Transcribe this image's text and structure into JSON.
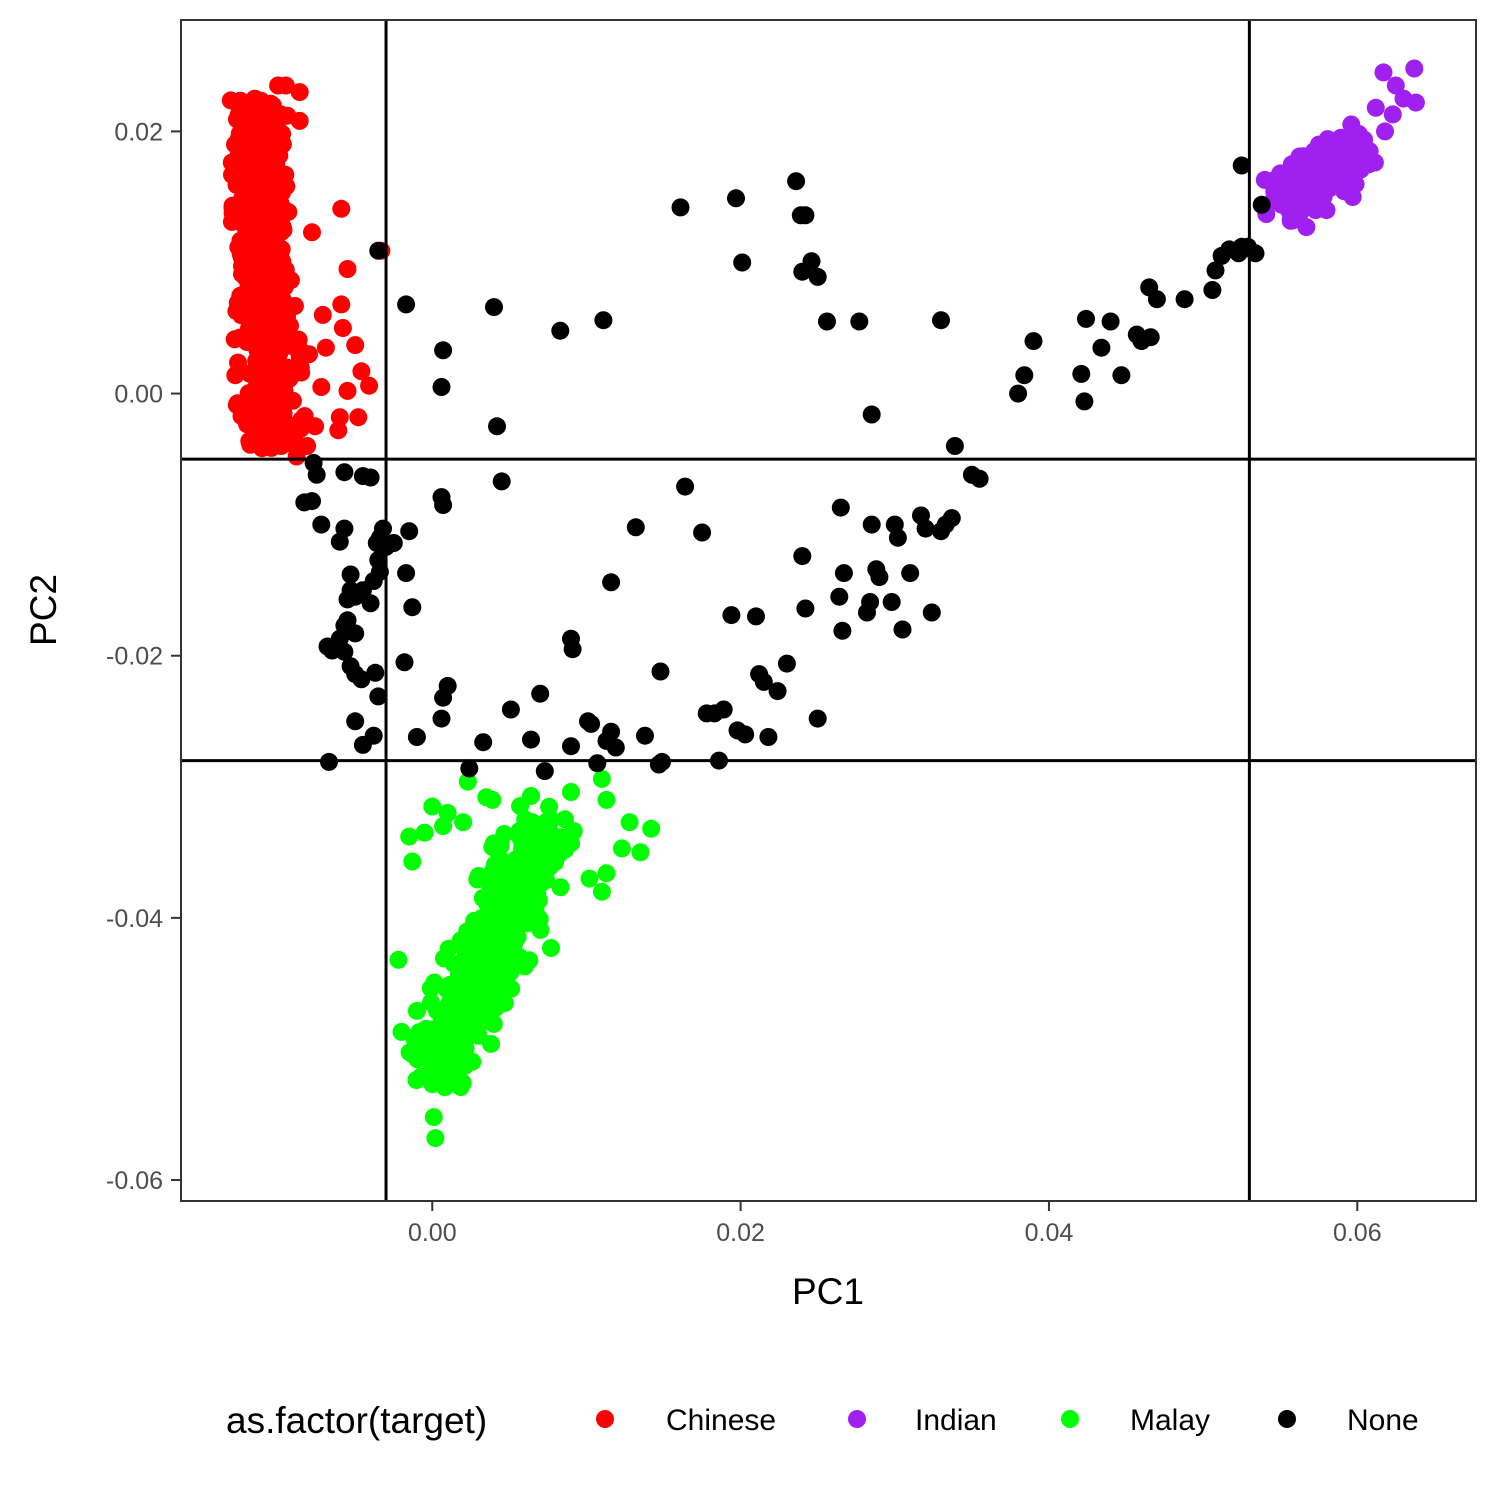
{
  "chart_data": {
    "type": "scatter",
    "xlabel": "PC1",
    "ylabel": "PC2",
    "xlim": [
      -0.0163,
      0.0677
    ],
    "ylim": [
      -0.0616,
      0.0285
    ],
    "xticks": [
      0.0,
      0.02,
      0.04,
      0.06
    ],
    "xtick_labels": [
      "0.00",
      "0.02",
      "0.04",
      "0.06"
    ],
    "yticks": [
      -0.06,
      -0.04,
      -0.02,
      0.0,
      0.02
    ],
    "ytick_labels": [
      "-0.06",
      "-0.04",
      "-0.02",
      "0.00",
      "0.02"
    ],
    "grid": false,
    "legend": {
      "title": "as.factor(target)",
      "position": "bottom"
    },
    "reference_lines": {
      "vertical": [
        -0.003,
        0.053
      ],
      "horizontal": [
        -0.005,
        -0.028
      ]
    },
    "series": [
      {
        "name": "Chinese",
        "color": "#ff0000",
        "generated": {
          "seed": 11,
          "count": 560,
          "mode": "vertical",
          "x_center": -0.0113,
          "y_min": -0.0043,
          "y_max": 0.0225,
          "spread_bottom": 0.0019,
          "spread_top": 0.0013,
          "shift_bottom": 0.0009,
          "shift_top": -0.0002
        },
        "points": [
          [
            -0.01,
            0.0235
          ],
          [
            -0.0095,
            0.0235
          ],
          [
            -0.0086,
            0.023
          ],
          [
            -0.0094,
            0.0212
          ],
          [
            -0.0086,
            0.0208
          ],
          [
            -0.0059,
            0.0141
          ],
          [
            -0.0078,
            0.0123
          ],
          [
            -0.0055,
            0.0095
          ],
          [
            -0.0033,
            0.0109
          ],
          [
            -0.0059,
            0.0068
          ],
          [
            -0.0071,
            0.006
          ],
          [
            -0.0058,
            0.005
          ],
          [
            -0.005,
            0.0037
          ],
          [
            -0.0069,
            0.0035
          ],
          [
            -0.0046,
            0.0017
          ],
          [
            -0.0055,
            0.0002
          ],
          [
            -0.0041,
            0.0006
          ],
          [
            -0.0048,
            -0.0018
          ],
          [
            -0.0072,
            0.0005
          ],
          [
            -0.006,
            -0.0018
          ],
          [
            -0.0085,
            -0.002
          ],
          [
            -0.0076,
            -0.0025
          ],
          [
            -0.0061,
            -0.0028
          ],
          [
            -0.008,
            0.003
          ],
          [
            -0.0089,
            -0.004
          ],
          [
            -0.0098,
            -0.004
          ],
          [
            -0.011,
            -0.004
          ],
          [
            -0.0088,
            -0.0048
          ],
          [
            -0.013,
            0.0131
          ],
          [
            -0.0128,
            0.019
          ]
        ]
      },
      {
        "name": "Indian",
        "color": "#a020f0",
        "generated": {
          "seed": 23,
          "count": 300,
          "mode": "diagonal",
          "x_from": 0.055,
          "y_from": 0.0148,
          "x_to": 0.0605,
          "y_to": 0.0188,
          "spread_along": 0.0014,
          "spread_across": 0.0008
        },
        "points": [
          [
            0.0617,
            0.0245
          ],
          [
            0.0637,
            0.0248
          ],
          [
            0.0625,
            0.0235
          ],
          [
            0.063,
            0.0225
          ],
          [
            0.0638,
            0.0222
          ],
          [
            0.0623,
            0.0213
          ],
          [
            0.0612,
            0.0218
          ],
          [
            0.0618,
            0.02
          ],
          [
            0.0608,
            0.0185
          ],
          [
            0.0601,
            0.0198
          ],
          [
            0.059,
            0.0172
          ],
          [
            0.054,
            0.0163
          ],
          [
            0.0541,
            0.0137
          ],
          [
            0.058,
            0.014
          ],
          [
            0.0567,
            0.0127
          ],
          [
            0.0557,
            0.0133
          ],
          [
            0.0597,
            0.015
          ],
          [
            0.0573,
            0.014
          ],
          [
            0.0563,
            0.015
          ],
          [
            0.0585,
            0.016
          ]
        ]
      },
      {
        "name": "Malay",
        "color": "#00ff00",
        "generated": {
          "seed": 37,
          "count": 380,
          "mode": "diagonal",
          "x_from": 0.0003,
          "y_from": -0.052,
          "x_to": 0.0072,
          "y_to": -0.033,
          "spread_along": 0.0038,
          "spread_across": 0.0011
        },
        "points": [
          [
            0.0002,
            -0.0568
          ],
          [
            0.0001,
            -0.0552
          ],
          [
            -0.0015,
            -0.0338
          ],
          [
            -0.0013,
            -0.0357
          ],
          [
            -0.002,
            -0.0487
          ],
          [
            -0.0022,
            -0.0432
          ],
          [
            -0.001,
            -0.0471
          ],
          [
            0.0023,
            -0.0296
          ],
          [
            0.0035,
            -0.0308
          ],
          [
            0.0039,
            -0.031
          ],
          [
            0.0064,
            -0.0307
          ],
          [
            0.009,
            -0.0304
          ],
          [
            0.011,
            -0.0294
          ],
          [
            0.0113,
            -0.031
          ],
          [
            0.0128,
            -0.0327
          ],
          [
            0.0142,
            -0.0332
          ],
          [
            0.0135,
            -0.035
          ],
          [
            0.0123,
            -0.0347
          ],
          [
            0.0113,
            -0.0366
          ],
          [
            0.0102,
            -0.037
          ],
          [
            0.011,
            -0.038
          ],
          [
            0.009,
            -0.0343
          ],
          [
            0.0079,
            -0.0357
          ],
          [
            0.006,
            -0.0365
          ],
          [
            0.0039,
            -0.0346
          ],
          [
            0.0007,
            -0.033
          ],
          [
            0.0,
            -0.0315
          ],
          [
            -0.0005,
            -0.0335
          ],
          [
            0.001,
            -0.032
          ],
          [
            0.002,
            -0.0327
          ],
          [
            0.0047,
            -0.0465
          ],
          [
            0.0043,
            -0.0442
          ],
          [
            0.0077,
            -0.0423
          ],
          [
            0.006,
            -0.0437
          ],
          [
            0.003,
            -0.049
          ],
          [
            0.002,
            -0.0475
          ],
          [
            0.001,
            -0.0505
          ],
          [
            0.0035,
            -0.046
          ],
          [
            0.0055,
            -0.04
          ],
          [
            0.0065,
            -0.038
          ]
        ]
      },
      {
        "name": "None",
        "color": "#000000",
        "points": [
          [
            -0.0035,
            0.0109
          ],
          [
            -0.0017,
            0.0068
          ],
          [
            0.0007,
            0.0033
          ],
          [
            0.0006,
            0.0005
          ],
          [
            0.004,
            0.0066
          ],
          [
            0.0042,
            -0.0025
          ],
          [
            0.0045,
            -0.0067
          ],
          [
            0.0083,
            0.0048
          ],
          [
            0.0111,
            0.0056
          ],
          [
            0.0161,
            0.0142
          ],
          [
            0.0197,
            0.0149
          ],
          [
            0.0201,
            0.01
          ],
          [
            0.0236,
            0.0162
          ],
          [
            0.0239,
            0.0136
          ],
          [
            0.0242,
            0.0136
          ],
          [
            0.0246,
            0.0101
          ],
          [
            0.024,
            0.0093
          ],
          [
            0.025,
            0.0089
          ],
          [
            0.0256,
            0.0055
          ],
          [
            0.0277,
            0.0055
          ],
          [
            0.0285,
            -0.0016
          ],
          [
            0.033,
            0.0056
          ],
          [
            0.0339,
            -0.004
          ],
          [
            0.0355,
            -0.0065
          ],
          [
            0.038,
            0.0
          ],
          [
            0.0384,
            0.0014
          ],
          [
            0.039,
            0.004
          ],
          [
            0.0421,
            0.0015
          ],
          [
            0.0423,
            -0.0006
          ],
          [
            0.0424,
            0.0057
          ],
          [
            0.0434,
            0.0035
          ],
          [
            0.044,
            0.0055
          ],
          [
            0.0447,
            0.0014
          ],
          [
            0.0457,
            0.0045
          ],
          [
            0.046,
            0.004
          ],
          [
            0.0465,
            0.0081
          ],
          [
            0.0466,
            0.0043
          ],
          [
            0.047,
            0.0072
          ],
          [
            0.0488,
            0.0072
          ],
          [
            0.0506,
            0.0079
          ],
          [
            0.0508,
            0.0094
          ],
          [
            0.0512,
            0.0105
          ],
          [
            0.0517,
            0.011
          ],
          [
            0.0523,
            0.0107
          ],
          [
            0.0525,
            0.0112
          ],
          [
            0.0529,
            0.0112
          ],
          [
            0.0534,
            0.0107
          ],
          [
            0.0538,
            0.0144
          ],
          [
            0.0525,
            0.0174
          ],
          [
            -0.0077,
            -0.0053
          ],
          [
            -0.0075,
            -0.0062
          ],
          [
            -0.0083,
            -0.0083
          ],
          [
            -0.0078,
            -0.0082
          ],
          [
            -0.0072,
            -0.01
          ],
          [
            -0.0057,
            -0.006
          ],
          [
            -0.0045,
            -0.0063
          ],
          [
            -0.004,
            -0.0064
          ],
          [
            -0.0057,
            -0.0103
          ],
          [
            -0.006,
            -0.0113
          ],
          [
            -0.0032,
            -0.0103
          ],
          [
            -0.0034,
            -0.011
          ],
          [
            -0.0036,
            -0.0114
          ],
          [
            -0.003,
            -0.0117
          ],
          [
            -0.0035,
            -0.0127
          ],
          [
            -0.0025,
            -0.0114
          ],
          [
            -0.0015,
            -0.0105
          ],
          [
            -0.0034,
            -0.0136
          ],
          [
            -0.0038,
            -0.0143
          ],
          [
            -0.0017,
            -0.0137
          ],
          [
            -0.0053,
            -0.0138
          ],
          [
            -0.0053,
            -0.015
          ],
          [
            -0.0055,
            -0.0157
          ],
          [
            -0.005,
            -0.0155
          ],
          [
            -0.0045,
            -0.015
          ],
          [
            -0.004,
            -0.016
          ],
          [
            -0.0013,
            -0.0163
          ],
          [
            -0.0055,
            -0.0173
          ],
          [
            -0.0057,
            -0.0177
          ],
          [
            -0.005,
            -0.0183
          ],
          [
            -0.006,
            -0.0187
          ],
          [
            -0.0063,
            -0.0193
          ],
          [
            -0.0057,
            -0.0197
          ],
          [
            -0.0065,
            -0.0196
          ],
          [
            -0.0068,
            -0.0193
          ],
          [
            -0.0053,
            -0.0208
          ],
          [
            -0.005,
            -0.0214
          ],
          [
            -0.0046,
            -0.0218
          ],
          [
            -0.0037,
            -0.0213
          ],
          [
            -0.0035,
            -0.0231
          ],
          [
            -0.005,
            -0.025
          ],
          [
            -0.0045,
            -0.0268
          ],
          [
            -0.0038,
            -0.0261
          ],
          [
            -0.0067,
            -0.0281
          ],
          [
            -0.0018,
            -0.0205
          ],
          [
            0.0006,
            -0.0079
          ],
          [
            0.0007,
            -0.0085
          ],
          [
            0.001,
            -0.0223
          ],
          [
            0.0007,
            -0.0232
          ],
          [
            0.0006,
            -0.0248
          ],
          [
            -0.001,
            -0.0262
          ],
          [
            0.0024,
            -0.0286
          ],
          [
            0.0033,
            -0.0266
          ],
          [
            0.0051,
            -0.0241
          ],
          [
            0.007,
            -0.0229
          ],
          [
            0.0064,
            -0.0264
          ],
          [
            0.0073,
            -0.0288
          ],
          [
            0.009,
            -0.0269
          ],
          [
            0.009,
            -0.0187
          ],
          [
            0.0091,
            -0.0195
          ],
          [
            0.0101,
            -0.025
          ],
          [
            0.0103,
            -0.0252
          ],
          [
            0.0107,
            -0.0282
          ],
          [
            0.0113,
            -0.0265
          ],
          [
            0.0116,
            -0.0258
          ],
          [
            0.0119,
            -0.027
          ],
          [
            0.0116,
            -0.0144
          ],
          [
            0.0132,
            -0.0102
          ],
          [
            0.0138,
            -0.0261
          ],
          [
            0.0147,
            -0.0283
          ],
          [
            0.0149,
            -0.0281
          ],
          [
            0.0148,
            -0.0212
          ],
          [
            0.0164,
            -0.0071
          ],
          [
            0.0175,
            -0.0106
          ],
          [
            0.0178,
            -0.0244
          ],
          [
            0.0183,
            -0.0244
          ],
          [
            0.0186,
            -0.028
          ],
          [
            0.0189,
            -0.0241
          ],
          [
            0.0194,
            -0.0169
          ],
          [
            0.0198,
            -0.0257
          ],
          [
            0.0203,
            -0.026
          ],
          [
            0.021,
            -0.017
          ],
          [
            0.0212,
            -0.0214
          ],
          [
            0.0215,
            -0.022
          ],
          [
            0.0218,
            -0.0262
          ],
          [
            0.0224,
            -0.0227
          ],
          [
            0.023,
            -0.0206
          ],
          [
            0.024,
            -0.0124
          ],
          [
            0.0242,
            -0.0164
          ],
          [
            0.025,
            -0.0248
          ],
          [
            0.0265,
            -0.0087
          ],
          [
            0.0267,
            -0.0137
          ],
          [
            0.0264,
            -0.0155
          ],
          [
            0.0266,
            -0.0181
          ],
          [
            0.0282,
            -0.0167
          ],
          [
            0.0284,
            -0.0159
          ],
          [
            0.0285,
            -0.01
          ],
          [
            0.0288,
            -0.0134
          ],
          [
            0.029,
            -0.014
          ],
          [
            0.0298,
            -0.0159
          ],
          [
            0.03,
            -0.01
          ],
          [
            0.0302,
            -0.011
          ],
          [
            0.0305,
            -0.018
          ],
          [
            0.031,
            -0.0137
          ],
          [
            0.0317,
            -0.0093
          ],
          [
            0.032,
            -0.0103
          ],
          [
            0.0324,
            -0.0167
          ],
          [
            0.0333,
            -0.01
          ],
          [
            0.0337,
            -0.0095
          ],
          [
            0.033,
            -0.0105
          ],
          [
            0.035,
            -0.0062
          ]
        ]
      }
    ]
  }
}
